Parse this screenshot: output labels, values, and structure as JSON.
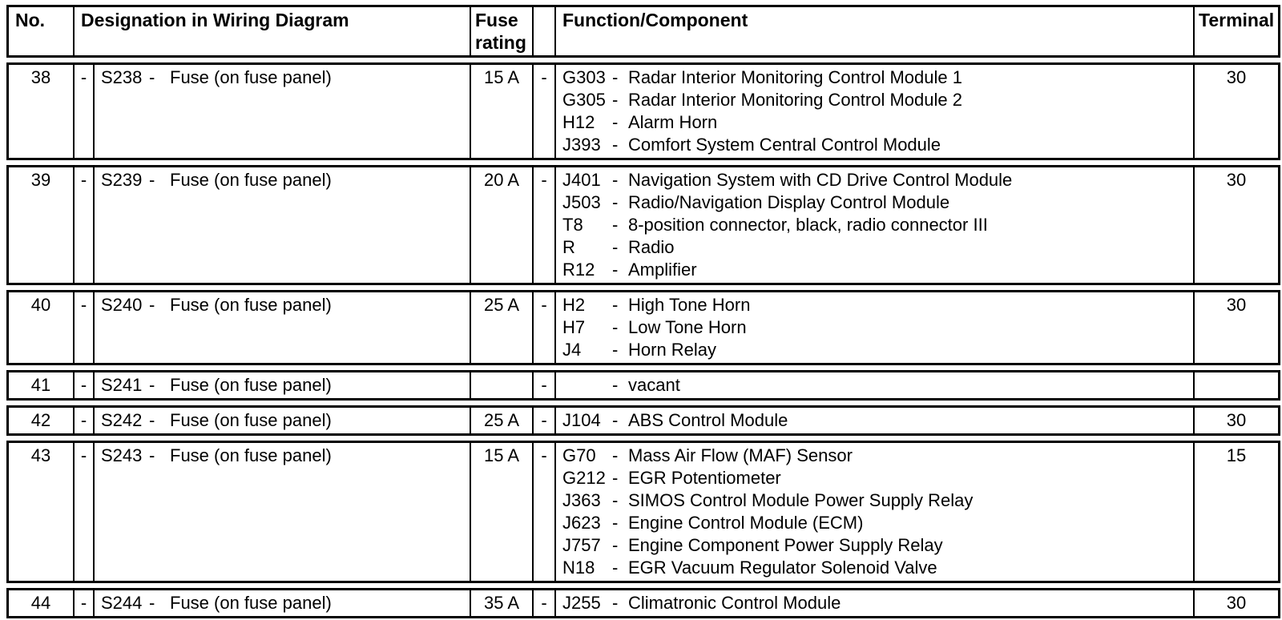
{
  "table": {
    "headers": {
      "no": "No.",
      "designation": "Designation in Wiring Diagram",
      "fuse_line1": "Fuse",
      "fuse_line2": "rating",
      "function": "Function/Component",
      "terminal": "Terminal"
    },
    "rows": [
      {
        "no": "38",
        "dash1": "-",
        "designation_code": "S238",
        "designation_dash": "-",
        "designation_text": "Fuse (on fuse panel)",
        "fuse_rating": "15 A",
        "dash2": "-",
        "functions": [
          {
            "code": "G303",
            "dash": "-",
            "text": "Radar Interior Monitoring Control Module 1"
          },
          {
            "code": "G305",
            "dash": "-",
            "text": "Radar Interior Monitoring Control Module 2"
          },
          {
            "code": "H12",
            "dash": "-",
            "text": "Alarm Horn"
          },
          {
            "code": "J393",
            "dash": "-",
            "text": "Comfort System Central Control Module"
          }
        ],
        "terminal": "30"
      },
      {
        "no": "39",
        "dash1": "-",
        "designation_code": "S239",
        "designation_dash": "-",
        "designation_text": "Fuse (on fuse panel)",
        "fuse_rating": "20 A",
        "dash2": "-",
        "functions": [
          {
            "code": "J401",
            "dash": "-",
            "text": "Navigation System with CD Drive Control Module"
          },
          {
            "code": "J503",
            "dash": "-",
            "text": "Radio/Navigation Display Control Module"
          },
          {
            "code": "T8",
            "dash": "-",
            "text": "8-position connector, black, radio connector III"
          },
          {
            "code": "R",
            "dash": "-",
            "text": "Radio"
          },
          {
            "code": "R12",
            "dash": "-",
            "text": "Amplifier"
          }
        ],
        "terminal": "30"
      },
      {
        "no": "40",
        "dash1": "-",
        "designation_code": "S240",
        "designation_dash": "-",
        "designation_text": "Fuse (on fuse panel)",
        "fuse_rating": "25 A",
        "dash2": "-",
        "functions": [
          {
            "code": "H2",
            "dash": "-",
            "text": "High Tone Horn"
          },
          {
            "code": "H7",
            "dash": "-",
            "text": "Low Tone Horn"
          },
          {
            "code": "J4",
            "dash": "-",
            "text": "Horn Relay"
          }
        ],
        "terminal": "30"
      },
      {
        "no": "41",
        "dash1": "-",
        "designation_code": "S241",
        "designation_dash": "-",
        "designation_text": "Fuse (on fuse panel)",
        "fuse_rating": "",
        "dash2": "-",
        "functions": [
          {
            "code": "",
            "dash": "-",
            "text": "vacant"
          }
        ],
        "terminal": ""
      },
      {
        "no": "42",
        "dash1": "-",
        "designation_code": "S242",
        "designation_dash": "-",
        "designation_text": "Fuse (on fuse panel)",
        "fuse_rating": "25 A",
        "dash2": "-",
        "functions": [
          {
            "code": "J104",
            "dash": "-",
            "text": "ABS Control Module"
          }
        ],
        "terminal": "30"
      },
      {
        "no": "43",
        "dash1": "-",
        "designation_code": "S243",
        "designation_dash": "-",
        "designation_text": "Fuse (on fuse panel)",
        "fuse_rating": "15 A",
        "dash2": "-",
        "functions": [
          {
            "code": "G70",
            "dash": "-",
            "text": "Mass Air Flow (MAF) Sensor"
          },
          {
            "code": "G212",
            "dash": "-",
            "text": "EGR Potentiometer"
          },
          {
            "code": "J363",
            "dash": "-",
            "text": "SIMOS Control Module Power Supply Relay"
          },
          {
            "code": "J623",
            "dash": "-",
            "text": "Engine Control Module (ECM)"
          },
          {
            "code": "J757",
            "dash": "-",
            "text": "Engine Component Power Supply Relay"
          },
          {
            "code": "N18",
            "dash": "-",
            "text": "EGR Vacuum Regulator Solenoid Valve"
          }
        ],
        "terminal": "15"
      },
      {
        "no": "44",
        "dash1": "-",
        "designation_code": "S244",
        "designation_dash": "-",
        "designation_text": "Fuse (on fuse panel)",
        "fuse_rating": "35 A",
        "dash2": "-",
        "functions": [
          {
            "code": "J255",
            "dash": "-",
            "text": "Climatronic Control Module"
          }
        ],
        "terminal": "30"
      }
    ]
  }
}
